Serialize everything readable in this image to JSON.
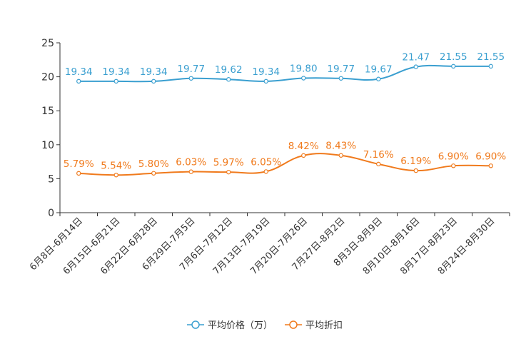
{
  "chart_data": {
    "type": "line",
    "title": "",
    "xlabel": "",
    "ylabel": "",
    "ylim": [
      0,
      25
    ],
    "yticks": [
      0,
      5,
      10,
      15,
      20,
      25
    ],
    "grid": false,
    "legend_position": "bottom-center",
    "categories": [
      "6月8日-6月14日",
      "6月15日-6月21日",
      "6月22日-6月28日",
      "6月29日-7月5日",
      "7月6日-7月12日",
      "7月13日-7月19日",
      "7月20日-7月26日",
      "7月27日-8月2日",
      "8月3日-8月9日",
      "8月10日-8月16日",
      "8月17日-8月23日",
      "8月24日-8月30日"
    ],
    "series": [
      {
        "name": "平均价格（万）",
        "color": "#3a9fd0",
        "values": [
          19.34,
          19.34,
          19.34,
          19.77,
          19.62,
          19.34,
          19.8,
          19.77,
          19.67,
          21.47,
          21.55,
          21.55
        ],
        "labels": [
          "19.34",
          "19.34",
          "19.34",
          "19.77",
          "19.62",
          "19.34",
          "19.80",
          "19.77",
          "19.67",
          "21.47",
          "21.55",
          "21.55"
        ]
      },
      {
        "name": "平均折扣",
        "color": "#f07a1c",
        "values": [
          5.79,
          5.54,
          5.8,
          6.03,
          5.97,
          6.05,
          8.42,
          8.43,
          7.16,
          6.19,
          6.9,
          6.9
        ],
        "labels": [
          "5.79%",
          "5.54%",
          "5.80%",
          "6.03%",
          "5.97%",
          "6.05%",
          "8.42%",
          "8.43%",
          "7.16%",
          "6.19%",
          "6.90%",
          "6.90%"
        ]
      }
    ]
  }
}
